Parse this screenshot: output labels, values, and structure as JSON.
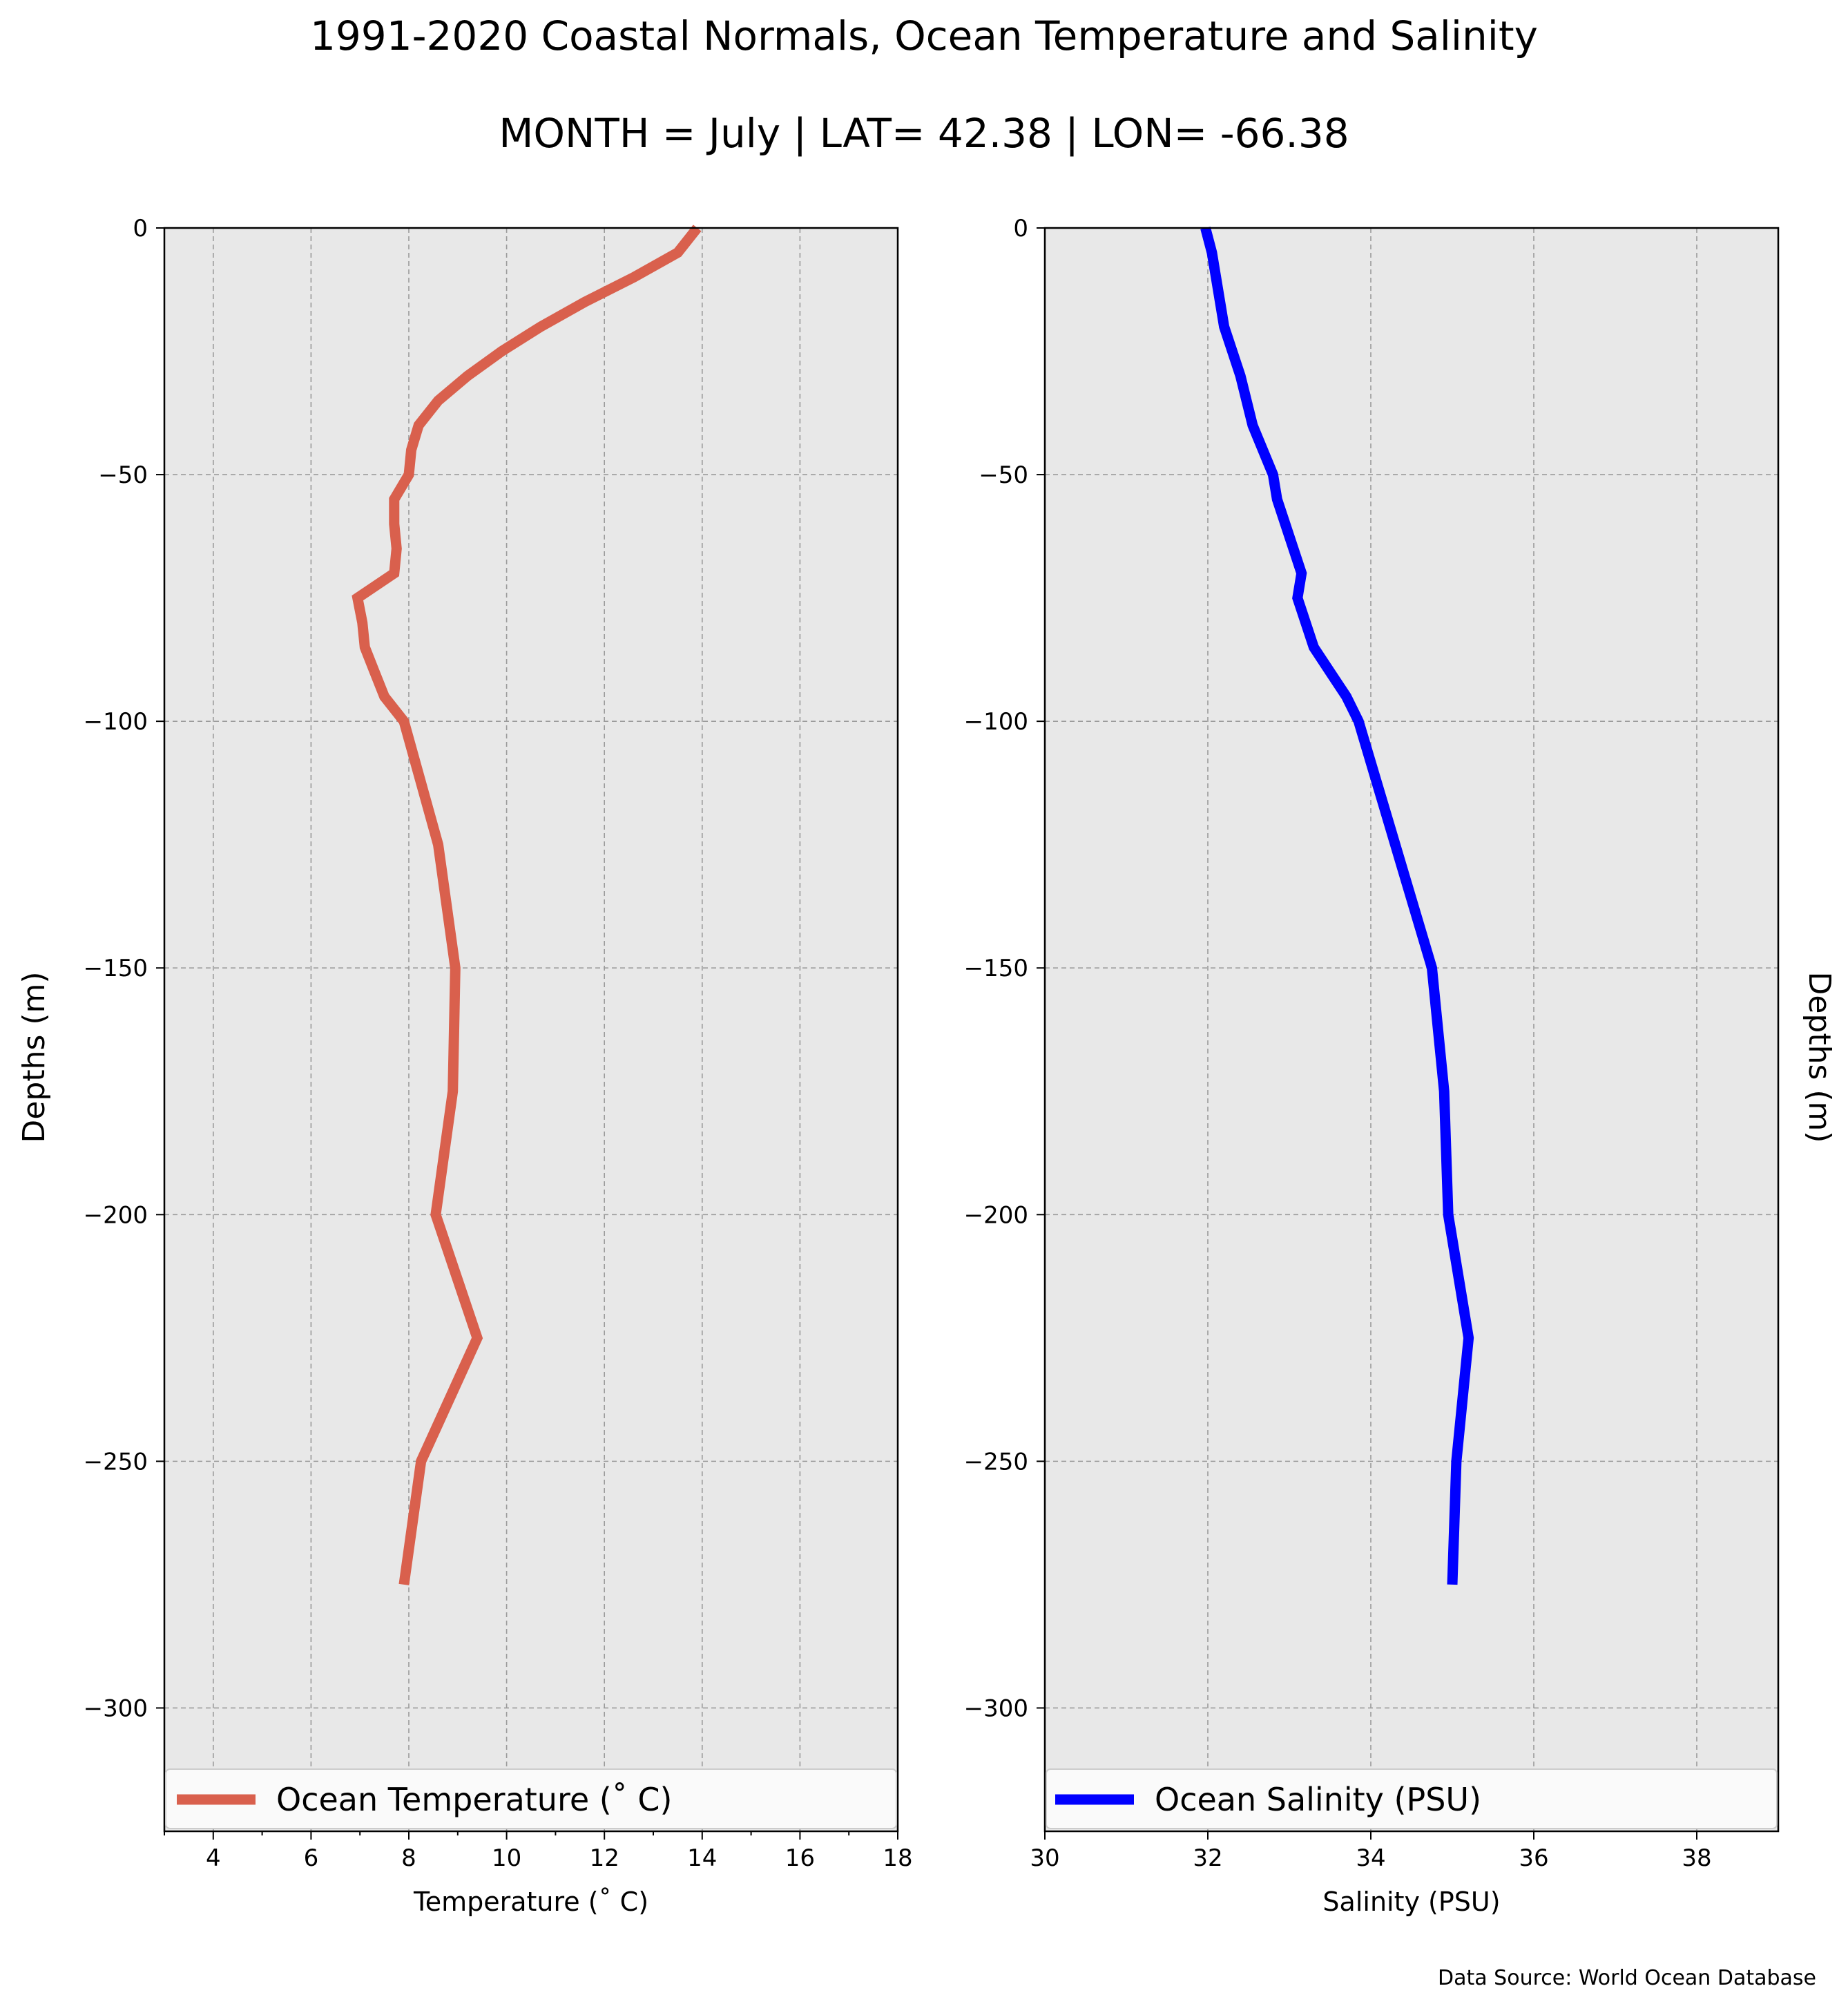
{
  "title_line1": "1991-2020 Coastal Normals, Ocean Temperature and Salinity",
  "title_line2": "MONTH = July | LAT= 42.38 | LON= -66.38",
  "source": "Data Source: World Ocean Database",
  "chart_data": [
    {
      "type": "line",
      "xlabel": "Temperature ($^\\circ$C)",
      "xlabel_display": "Temperature (˚ C)",
      "ylabel": "Depths (m)",
      "xlim": [
        3,
        18
      ],
      "ylim": [
        -325,
        0
      ],
      "xticks": [
        4,
        6,
        8,
        10,
        12,
        14,
        16,
        18
      ],
      "yticks": [
        0,
        -50,
        -100,
        -150,
        -200,
        -250,
        -300
      ],
      "ytick_labels": [
        "0",
        "−50",
        "−100",
        "−150",
        "−200",
        "−250",
        "−300"
      ],
      "grid": true,
      "legend_position": "lower-center",
      "series": [
        {
          "name": "Ocean Temperature (˚ C)",
          "color": "#d9604d",
          "points": [
            [
              13.9,
              0
            ],
            [
              13.5,
              -5
            ],
            [
              12.6,
              -10
            ],
            [
              11.6,
              -15
            ],
            [
              10.7,
              -20
            ],
            [
              9.9,
              -25
            ],
            [
              9.2,
              -30
            ],
            [
              8.6,
              -35
            ],
            [
              8.2,
              -40
            ],
            [
              8.05,
              -45
            ],
            [
              8.0,
              -50
            ],
            [
              7.7,
              -55
            ],
            [
              7.7,
              -60
            ],
            [
              7.75,
              -65
            ],
            [
              7.7,
              -70
            ],
            [
              6.95,
              -75
            ],
            [
              7.05,
              -80
            ],
            [
              7.1,
              -85
            ],
            [
              7.3,
              -90
            ],
            [
              7.5,
              -95
            ],
            [
              7.9,
              -100
            ],
            [
              8.6,
              -125
            ],
            [
              8.95,
              -150
            ],
            [
              8.9,
              -175
            ],
            [
              8.55,
              -200
            ],
            [
              9.4,
              -225
            ],
            [
              8.25,
              -250
            ],
            [
              7.9,
              -275
            ]
          ]
        }
      ]
    },
    {
      "type": "line",
      "xlabel": "Salinity (PSU)",
      "ylabel": "Depths (m)",
      "xlim": [
        30,
        39
      ],
      "ylim": [
        -325,
        0
      ],
      "xticks": [
        30,
        32,
        34,
        36,
        38
      ],
      "yticks": [
        0,
        -50,
        -100,
        -150,
        -200,
        -250,
        -300
      ],
      "ytick_labels": [
        "0",
        "−50",
        "−100",
        "−150",
        "−200",
        "−250",
        "−300"
      ],
      "grid": true,
      "legend_position": "lower-center",
      "series": [
        {
          "name": "Ocean Salinity (PSU)",
          "color": "#0000ff",
          "points": [
            [
              31.97,
              0
            ],
            [
              32.05,
              -5
            ],
            [
              32.1,
              -10
            ],
            [
              32.2,
              -20
            ],
            [
              32.4,
              -30
            ],
            [
              32.55,
              -40
            ],
            [
              32.8,
              -50
            ],
            [
              32.85,
              -55
            ],
            [
              33.05,
              -65
            ],
            [
              33.15,
              -70
            ],
            [
              33.1,
              -75
            ],
            [
              33.2,
              -80
            ],
            [
              33.3,
              -85
            ],
            [
              33.5,
              -90
            ],
            [
              33.7,
              -95
            ],
            [
              33.85,
              -100
            ],
            [
              34.3,
              -125
            ],
            [
              34.75,
              -150
            ],
            [
              34.9,
              -175
            ],
            [
              34.95,
              -200
            ],
            [
              35.2,
              -225
            ],
            [
              35.05,
              -250
            ],
            [
              35.0,
              -275
            ]
          ]
        }
      ]
    }
  ]
}
